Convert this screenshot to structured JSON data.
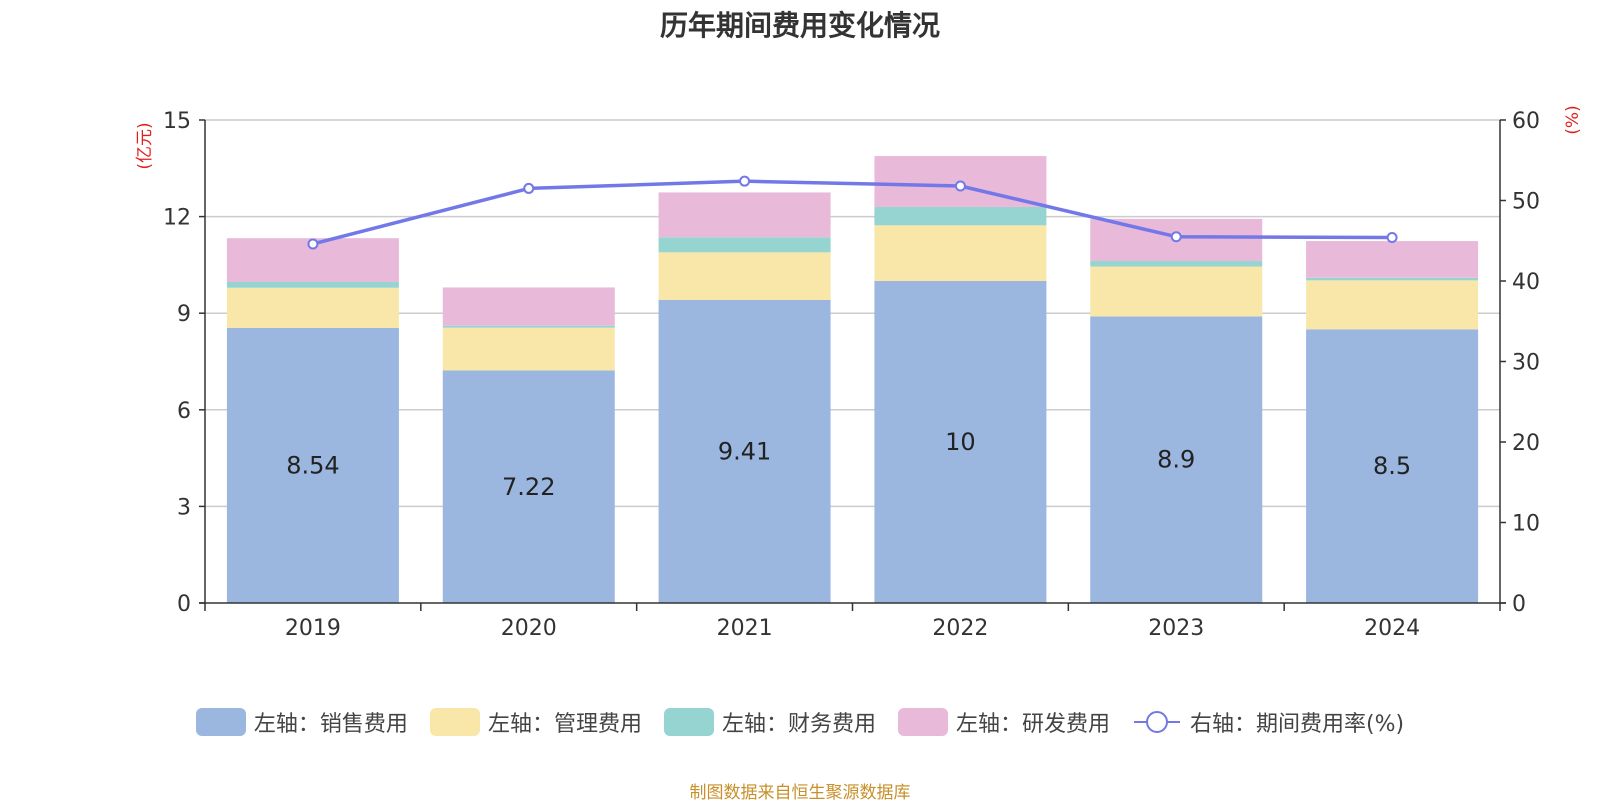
{
  "chart_data": {
    "type": "bar",
    "title": "历年期间费用变化情况",
    "categories": [
      "2019",
      "2020",
      "2021",
      "2022",
      "2023",
      "2024"
    ],
    "left_axis": {
      "label": "(亿元)",
      "ylim": [
        0,
        15
      ],
      "ticks": [
        0,
        3,
        6,
        9,
        12,
        15
      ]
    },
    "right_axis": {
      "label": "(%)",
      "ylim": [
        0,
        60
      ],
      "ticks": [
        0,
        10,
        20,
        30,
        40,
        50,
        60
      ]
    },
    "series": [
      {
        "name": "左轴：销售费用",
        "type": "bar",
        "axis": "left",
        "color": "#9bb7e0",
        "values": [
          8.54,
          7.22,
          9.41,
          10,
          8.9,
          8.5
        ],
        "labels": [
          "8.54",
          "7.22",
          "9.41",
          "10",
          "8.9",
          "8.5"
        ]
      },
      {
        "name": "左轴：管理费用",
        "type": "bar",
        "axis": "left",
        "color": "#f8e7a8",
        "values": [
          1.25,
          1.33,
          1.48,
          1.73,
          1.55,
          1.52
        ]
      },
      {
        "name": "左轴：财务费用",
        "type": "bar",
        "axis": "left",
        "color": "#96d4d2",
        "values": [
          0.18,
          0.06,
          0.47,
          0.57,
          0.17,
          0.08
        ]
      },
      {
        "name": "左轴：研发费用",
        "type": "bar",
        "axis": "left",
        "color": "#e8b9d9",
        "values": [
          1.36,
          1.19,
          1.39,
          1.58,
          1.31,
          1.14
        ]
      },
      {
        "name": "右轴：期间费用率(%)",
        "type": "line",
        "axis": "right",
        "color": "#7378e8",
        "values": [
          44.6,
          51.5,
          52.4,
          51.8,
          45.5,
          45.4
        ]
      }
    ],
    "source": "制图数据来自恒生聚源数据库"
  }
}
